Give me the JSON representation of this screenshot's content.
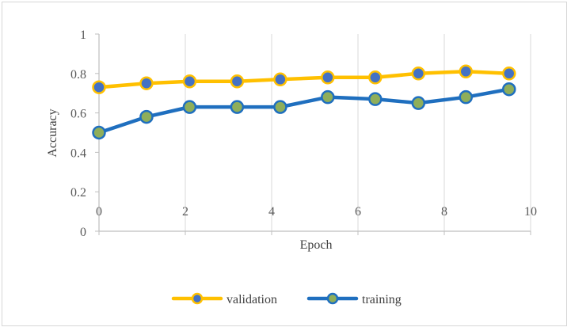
{
  "chart_data": {
    "type": "scatter",
    "title": "",
    "xlabel": "Epoch",
    "ylabel": "Accuracy",
    "xlim": [
      0,
      10
    ],
    "ylim": [
      0,
      1
    ],
    "xticks": [
      "0",
      "2",
      "4",
      "6",
      "8",
      "10"
    ],
    "yticks": [
      "0",
      "0.2",
      "0.4",
      "0.6",
      "0.8",
      "1"
    ],
    "grid": "vertical",
    "legend_position": "bottom",
    "series": [
      {
        "name": "validation",
        "line_color": "#ffc000",
        "marker_color": "#4472c4",
        "x": [
          0,
          1.1,
          2.1,
          3.2,
          4.2,
          5.3,
          6.4,
          7.4,
          8.5,
          9.5
        ],
        "y": [
          0.73,
          0.75,
          0.76,
          0.76,
          0.77,
          0.78,
          0.78,
          0.8,
          0.81,
          0.8
        ]
      },
      {
        "name": "training",
        "line_color": "#1f6fbf",
        "marker_color": "#8fae5a",
        "x": [
          0,
          1.1,
          2.1,
          3.2,
          4.2,
          5.3,
          6.4,
          7.4,
          8.5,
          9.5
        ],
        "y": [
          0.5,
          0.58,
          0.63,
          0.63,
          0.63,
          0.68,
          0.67,
          0.65,
          0.68,
          0.72
        ]
      }
    ]
  }
}
